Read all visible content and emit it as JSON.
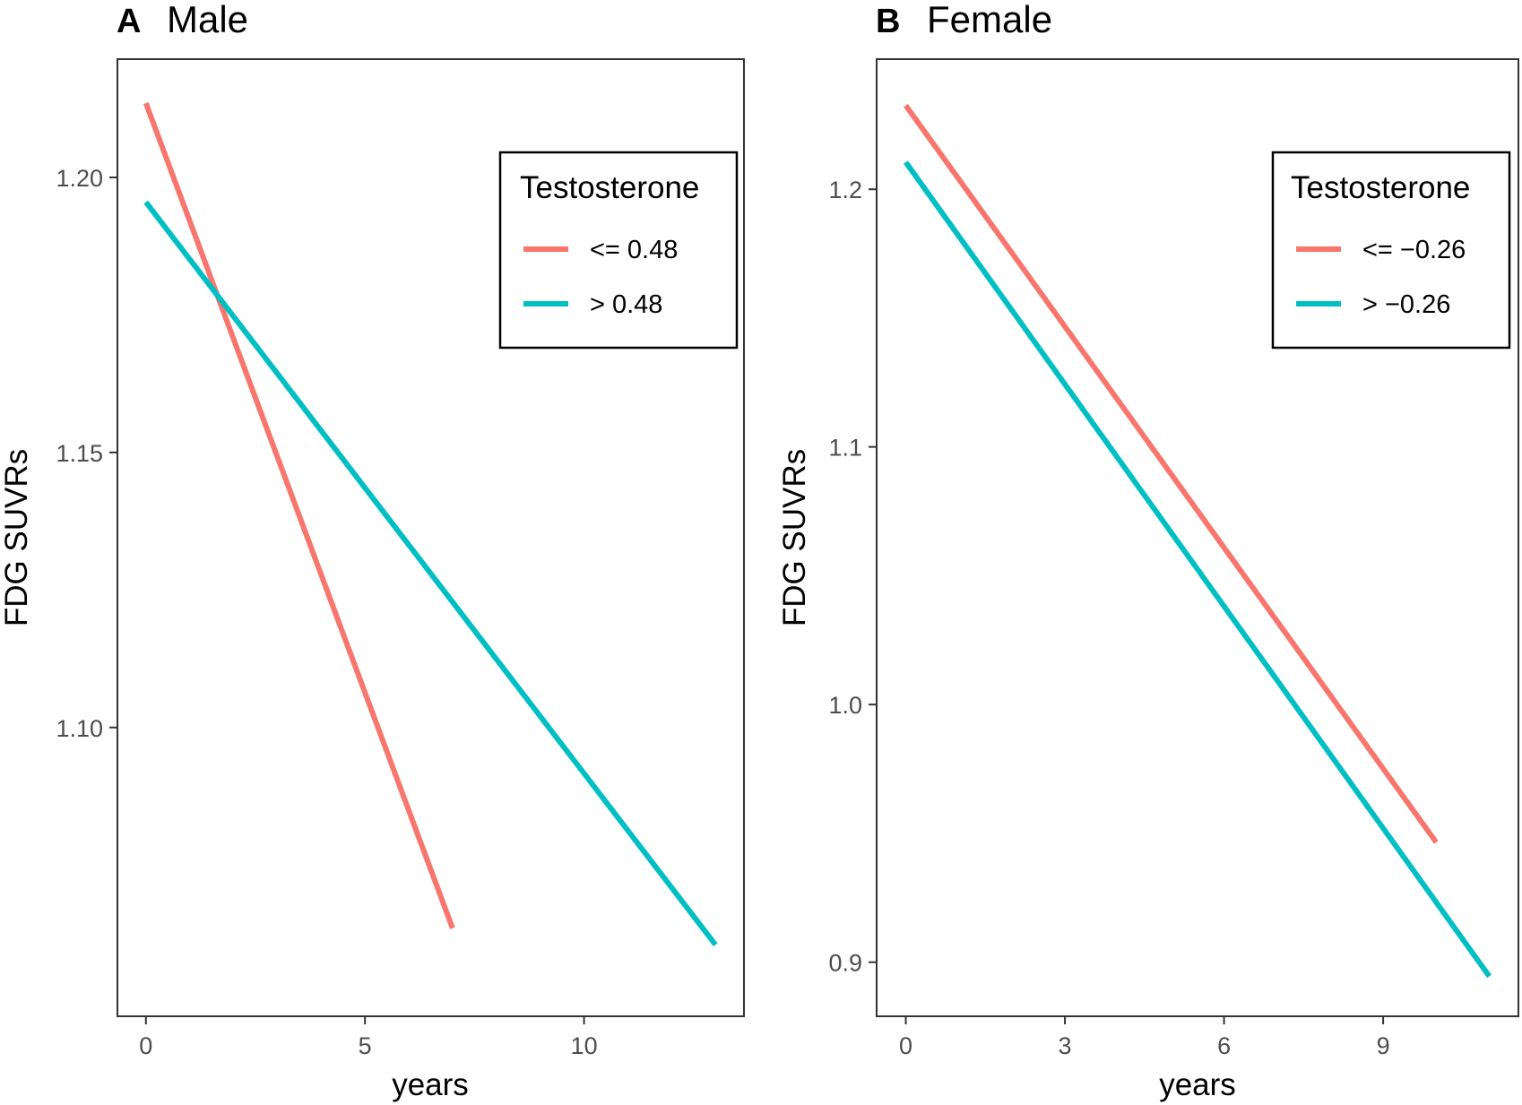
{
  "chart_data": [
    {
      "type": "line",
      "panel_letter": "A",
      "title": "Male",
      "xlabel": "years",
      "ylabel": "FDG SUVRs",
      "xlim": [
        -0.65,
        13.65
      ],
      "ylim": [
        1.0475,
        1.2215
      ],
      "x_ticks": [
        0,
        5,
        10
      ],
      "x_tick_labels": [
        "0",
        "5",
        "10"
      ],
      "y_ticks": [
        1.1,
        1.15,
        1.2
      ],
      "y_tick_labels": [
        "1.10",
        "1.15",
        "1.20"
      ],
      "grid": false,
      "legend": {
        "title": "Testosterone",
        "position": "top-right",
        "entries": [
          "<= 0.48",
          "> 0.48"
        ]
      },
      "series": [
        {
          "name": "<= 0.48",
          "color": "#F8766D",
          "x": [
            0,
            7
          ],
          "y": [
            1.2135,
            1.0635
          ]
        },
        {
          "name": "> 0.48",
          "color": "#00BFC4",
          "x": [
            0,
            13
          ],
          "y": [
            1.1955,
            1.0605
          ]
        }
      ]
    },
    {
      "type": "line",
      "panel_letter": "B",
      "title": "Female",
      "xlabel": "years",
      "ylabel": "FDG SUVRs",
      "xlim": [
        -0.55,
        11.55
      ],
      "ylim": [
        0.879,
        1.2505
      ],
      "x_ticks": [
        0,
        3,
        6,
        9
      ],
      "x_tick_labels": [
        "0",
        "3",
        "6",
        "9"
      ],
      "y_ticks": [
        0.9,
        1.0,
        1.1,
        1.2
      ],
      "y_tick_labels": [
        "0.9",
        "1.0",
        "1.1",
        "1.2"
      ],
      "grid": false,
      "legend": {
        "title": "Testosterone",
        "position": "top-right",
        "entries": [
          "<= −0.26",
          "> −0.26"
        ]
      },
      "series": [
        {
          "name": "<= −0.26",
          "color": "#F8766D",
          "x": [
            0,
            10
          ],
          "y": [
            1.2325,
            0.9465
          ]
        },
        {
          "name": "> −0.26",
          "color": "#00BFC4",
          "x": [
            0,
            11
          ],
          "y": [
            1.2105,
            0.8945
          ]
        }
      ]
    }
  ]
}
